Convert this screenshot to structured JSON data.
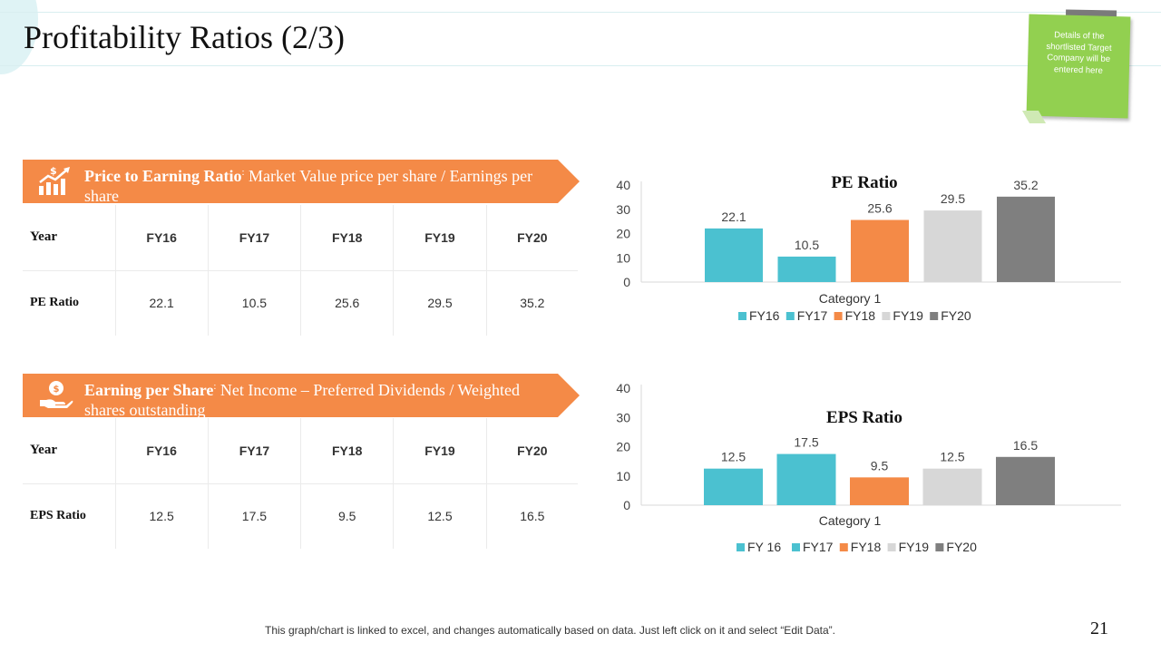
{
  "title": "Profitability Ratios (2/3)",
  "sticky_note": "Details of the shortlisted Target Company will be entered here",
  "colors": {
    "orange": "#f48a47",
    "teal": "#4bc1d0",
    "light_gray": "#d7d7d7",
    "dark_gray": "#7f7f7f",
    "green": "#92d050"
  },
  "pe_section": {
    "heading": "Price to Earning Ratio",
    "colon": ":",
    "description": " Market Value price per share / Earnings per share",
    "icon": "growth-chart-icon",
    "table": {
      "header": [
        "Year",
        "FY16",
        "FY17",
        "FY18",
        "FY19",
        "FY20"
      ],
      "row": [
        "PE Ratio",
        "22.1",
        "10.5",
        "25.6",
        "29.5",
        "35.2"
      ]
    }
  },
  "eps_section": {
    "heading": "Earning per Share",
    "colon": ":",
    "description": " Net Income – Preferred Dividends / Weighted shares outstanding",
    "icon": "coin-hand-icon",
    "table": {
      "header": [
        "Year",
        "FY16",
        "FY17",
        "FY18",
        "FY19",
        "FY20"
      ],
      "row": [
        "EPS Ratio",
        "12.5",
        "17.5",
        "9.5",
        "12.5",
        "16.5"
      ]
    }
  },
  "chart_data": [
    {
      "type": "bar",
      "title": "PE Ratio",
      "categories": [
        "Category 1"
      ],
      "series": [
        {
          "name": "FY16",
          "values": [
            22.1
          ],
          "color": "#4bc1d0"
        },
        {
          "name": "FY17",
          "values": [
            10.5
          ],
          "color": "#4bc1d0"
        },
        {
          "name": "FY18",
          "values": [
            25.6
          ],
          "color": "#f48a47"
        },
        {
          "name": "FY19",
          "values": [
            29.5
          ],
          "color": "#d7d7d7"
        },
        {
          "name": "FY20",
          "values": [
            35.2
          ],
          "color": "#7f7f7f"
        }
      ],
      "yticks": [
        "0",
        "10",
        "20",
        "30",
        "40"
      ],
      "ylim": [
        0,
        40
      ],
      "xlabel": "Category 1",
      "legend_position": "bottom"
    },
    {
      "type": "bar",
      "title": "EPS Ratio",
      "categories": [
        "Category 1"
      ],
      "series": [
        {
          "name": "FY 16",
          "values": [
            12.5
          ],
          "color": "#4bc1d0"
        },
        {
          "name": "FY17",
          "values": [
            17.5
          ],
          "color": "#4bc1d0"
        },
        {
          "name": "FY18",
          "values": [
            9.5
          ],
          "color": "#f48a47"
        },
        {
          "name": "FY19",
          "values": [
            12.5
          ],
          "color": "#d7d7d7"
        },
        {
          "name": "FY20",
          "values": [
            16.5
          ],
          "color": "#7f7f7f"
        }
      ],
      "yticks": [
        "0",
        "10",
        "20",
        "30",
        "40"
      ],
      "ylim": [
        0,
        40
      ],
      "xlabel": "Category 1",
      "legend_position": "bottom"
    }
  ],
  "footer": "This graph/chart is linked to excel, and changes automatically based on data. Just left click on it and select “Edit Data”.",
  "page_number": "21"
}
